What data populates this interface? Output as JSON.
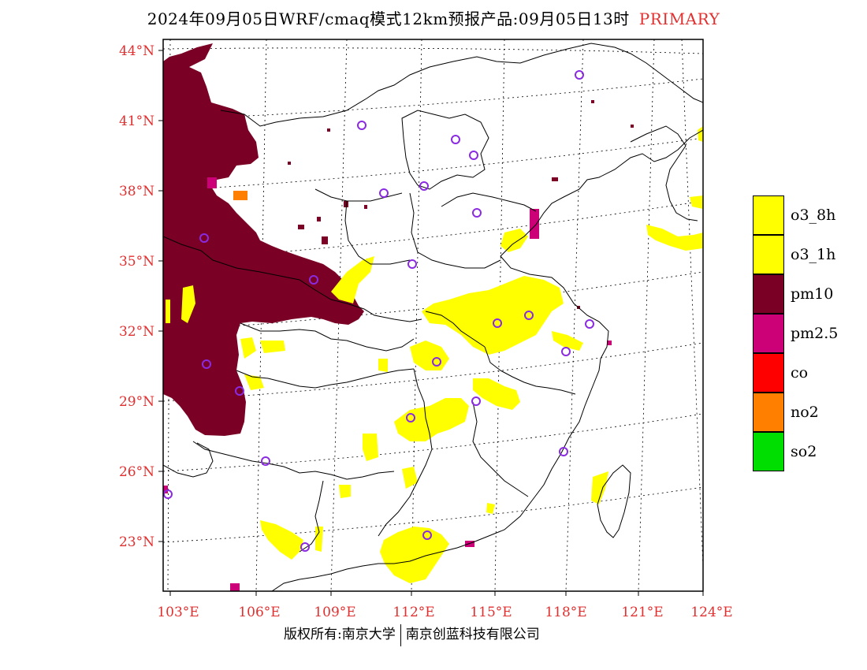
{
  "header": {
    "title": "2024年09月05日WRF/cmaq模式12km预报产品:09月05日13时",
    "tag": "PRIMARY"
  },
  "colors": {
    "axis_label": "#e03030",
    "o3_8h": "#ffff00",
    "o3_1h": "#ffff00",
    "pm10": "#7a0026",
    "pm25": "#cc0077",
    "co": "#ff0000",
    "no2": "#ff7f00",
    "so2": "#00dd00",
    "station_marker": "#8a2be2"
  },
  "axes": {
    "lat_labels": [
      "44°N",
      "41°N",
      "38°N",
      "35°N",
      "32°N",
      "29°N",
      "26°N",
      "23°N"
    ],
    "lon_labels": [
      "103°E",
      "106°E",
      "109°E",
      "112°E",
      "115°E",
      "118°E",
      "121°E",
      "124°E"
    ]
  },
  "legend": {
    "items": [
      {
        "key": "o3_8h",
        "label": "o3_8h"
      },
      {
        "key": "o3_1h",
        "label": "o3_1h"
      },
      {
        "key": "pm10",
        "label": "pm10"
      },
      {
        "key": "pm25",
        "label": "pm2.5"
      },
      {
        "key": "co",
        "label": "co"
      },
      {
        "key": "no2",
        "label": "no2"
      },
      {
        "key": "so2",
        "label": "so2"
      }
    ]
  },
  "footer": {
    "left": "版权所有:南京大学",
    "right": "南京创蓝科技有限公司"
  }
}
